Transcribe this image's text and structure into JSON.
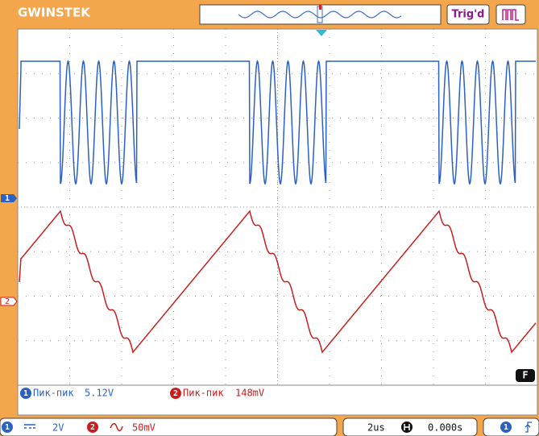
{
  "header": {
    "brand": "GWINSTEK",
    "trigger_status": "Trig'd"
  },
  "channel_markers": [
    "1",
    "2"
  ],
  "function_marker": "F",
  "measurements": [
    {
      "channel": "1",
      "label": "Пик-пик",
      "value": "5.12V"
    },
    {
      "channel": "2",
      "label": "Пик-пик",
      "value": "148mV"
    }
  ],
  "status_bar": {
    "ch1": "1",
    "ch1_scale": "2V",
    "ch2": "2",
    "ch2_scale": "50mV",
    "timebase": "2us",
    "trigger_position": "0.000s",
    "trigger_source": "1"
  }
}
